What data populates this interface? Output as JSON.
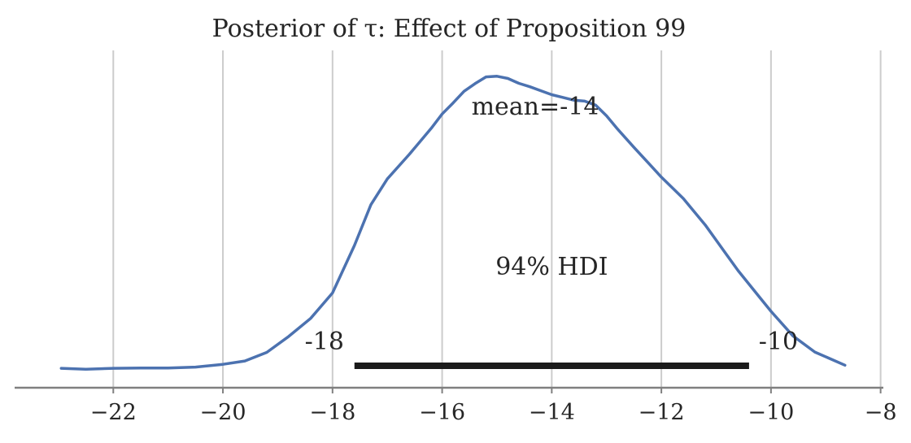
{
  "chart_data": {
    "type": "line",
    "title": "Posterior of τ: Effect of Proposition 99",
    "xlabel": "",
    "ylabel": "",
    "xlim": [
      -23.8,
      -7.95
    ],
    "ylim": [
      0,
      1
    ],
    "xticks": [
      -22,
      -20,
      -18,
      -16,
      -14,
      -12,
      -10,
      -8
    ],
    "xtick_labels": [
      "−22",
      "−20",
      "−18",
      "−16",
      "−14",
      "−12",
      "−10",
      "−8"
    ],
    "grid": "vertical",
    "line_color": "#4c72b0",
    "hdi_color": "#1a1a1a",
    "series": [
      {
        "x": [
          -22.95,
          -22.5,
          -22.0,
          -21.5,
          -21.0,
          -20.5,
          -20.0,
          -19.6,
          -19.2,
          -18.8,
          -18.4,
          -18.0,
          -17.6,
          -17.3,
          -17.0,
          -16.6,
          -16.2,
          -16.0,
          -15.8,
          -15.6,
          -15.4,
          -15.2,
          -15.0,
          -14.8,
          -14.6,
          -14.4,
          -14.2,
          -14.0,
          -13.8,
          -13.6,
          -13.4,
          -13.2,
          -13.0,
          -12.8,
          -12.5,
          -12.2,
          -12.0,
          -11.6,
          -11.2,
          -11.0,
          -10.6,
          -10.2,
          -10.0,
          -9.6,
          -9.2,
          -8.65
        ],
        "y": [
          0.005,
          0.002,
          0.005,
          0.006,
          0.006,
          0.009,
          0.018,
          0.029,
          0.057,
          0.109,
          0.168,
          0.251,
          0.406,
          0.539,
          0.623,
          0.703,
          0.788,
          0.835,
          0.871,
          0.909,
          0.934,
          0.956,
          0.958,
          0.951,
          0.935,
          0.924,
          0.911,
          0.898,
          0.889,
          0.88,
          0.877,
          0.864,
          0.829,
          0.786,
          0.726,
          0.668,
          0.629,
          0.559,
          0.473,
          0.423,
          0.324,
          0.235,
          0.191,
          0.111,
          0.058,
          0.015
        ]
      }
    ],
    "mean_label": "mean=-14",
    "hdi": {
      "label": "94% HDI",
      "low": -17.6,
      "high": -10.4,
      "low_label": "-18",
      "high_label": "-10"
    }
  }
}
